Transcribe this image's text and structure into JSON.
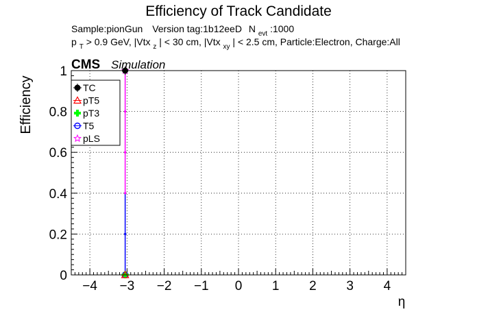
{
  "chart_data": {
    "type": "scatter",
    "title": "Efficiency of Track Candidate",
    "subtitle_line1": {
      "sample": "Sample:pionGun",
      "version": "Version tag:1b12eeD",
      "nevt_base": "N",
      "nevt_sub": "evt",
      "nevt_value": ":1000"
    },
    "subtitle_line2": {
      "p_base": "p",
      "p_sub": "T",
      "pt_cut": " > 0.9 GeV, |Vtx",
      "vtxz_sub": "z",
      "vtxz_cut": "| < 30 cm, |Vtx",
      "vtxxy_sub": "xy",
      "rest": "| < 2.5 cm, Particle:Electron, Charge:All"
    },
    "cms_label": "CMS",
    "simulation_label": "Simulation",
    "xlabel": "η",
    "ylabel": "Efficiency",
    "xlim": [
      -4.5,
      4.5
    ],
    "ylim": [
      0,
      1.0
    ],
    "x_ticks": [
      -4,
      -3,
      -2,
      -1,
      0,
      1,
      2,
      3,
      4
    ],
    "x_tick_labels": [
      "−4",
      "−3",
      "−2",
      "−1",
      "0",
      "1",
      "2",
      "3",
      "4"
    ],
    "y_ticks": [
      0,
      0.2,
      0.4,
      0.6,
      0.8,
      1
    ],
    "y_tick_labels": [
      "0",
      "0.2",
      "0.4",
      "0.6",
      "0.8",
      "1"
    ],
    "grid": true,
    "legend_position": "top-left",
    "series": [
      {
        "name": "TC",
        "color": "#000000",
        "marker": "filled-circle",
        "points": [
          {
            "x": -3.05,
            "y": 1.0
          }
        ]
      },
      {
        "name": "pT5",
        "color": "#ff0000",
        "marker": "open-triangle",
        "points": [
          {
            "x": -3.05,
            "y": 0.0
          }
        ]
      },
      {
        "name": "pT3",
        "color": "#00ff00",
        "marker": "filled-cross",
        "points": [
          {
            "x": -3.05,
            "y": 0.0
          }
        ]
      },
      {
        "name": "T5",
        "color": "#0000ff",
        "marker": "open-circle",
        "points": [
          {
            "x": -3.05,
            "y": 0.0
          }
        ]
      },
      {
        "name": "pLS",
        "color": "#ff00ff",
        "marker": "open-star",
        "points": [
          {
            "x": -3.05,
            "y": 1.0
          }
        ]
      }
    ]
  }
}
